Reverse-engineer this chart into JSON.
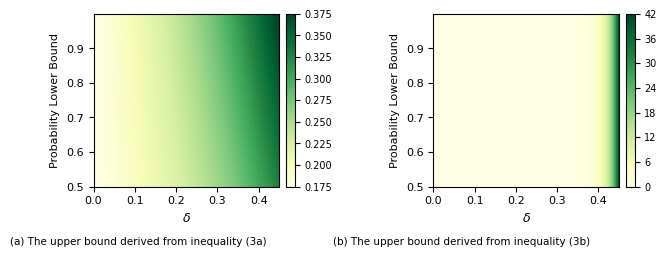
{
  "delta_min": 0.0,
  "delta_max": 0.45,
  "delta_n": 300,
  "prob_min": 0.5,
  "prob_max": 1.0,
  "prob_n": 300,
  "colormap": "YlGn",
  "plot1_vmin": 0.175,
  "plot1_vmax": 0.375,
  "plot1_colorbar_ticks": [
    0.175,
    0.2,
    0.225,
    0.25,
    0.275,
    0.3,
    0.325,
    0.35,
    0.375
  ],
  "plot2_vmin": 0,
  "plot2_vmax": 42,
  "plot2_colorbar_ticks": [
    0,
    6,
    12,
    18,
    24,
    30,
    36,
    42
  ],
  "xlabel": "$\\delta$",
  "ylabel": "Probability Lower Bound",
  "caption1": "(a) The upper bound derived from inequality (3a)",
  "caption2": "(b) The upper bound derived from inequality (3b)",
  "xticks": [
    0.0,
    0.1,
    0.2,
    0.3,
    0.4
  ],
  "yticks": [
    0.5,
    0.6,
    0.7,
    0.8,
    0.9
  ],
  "background_color": "#ffffff"
}
